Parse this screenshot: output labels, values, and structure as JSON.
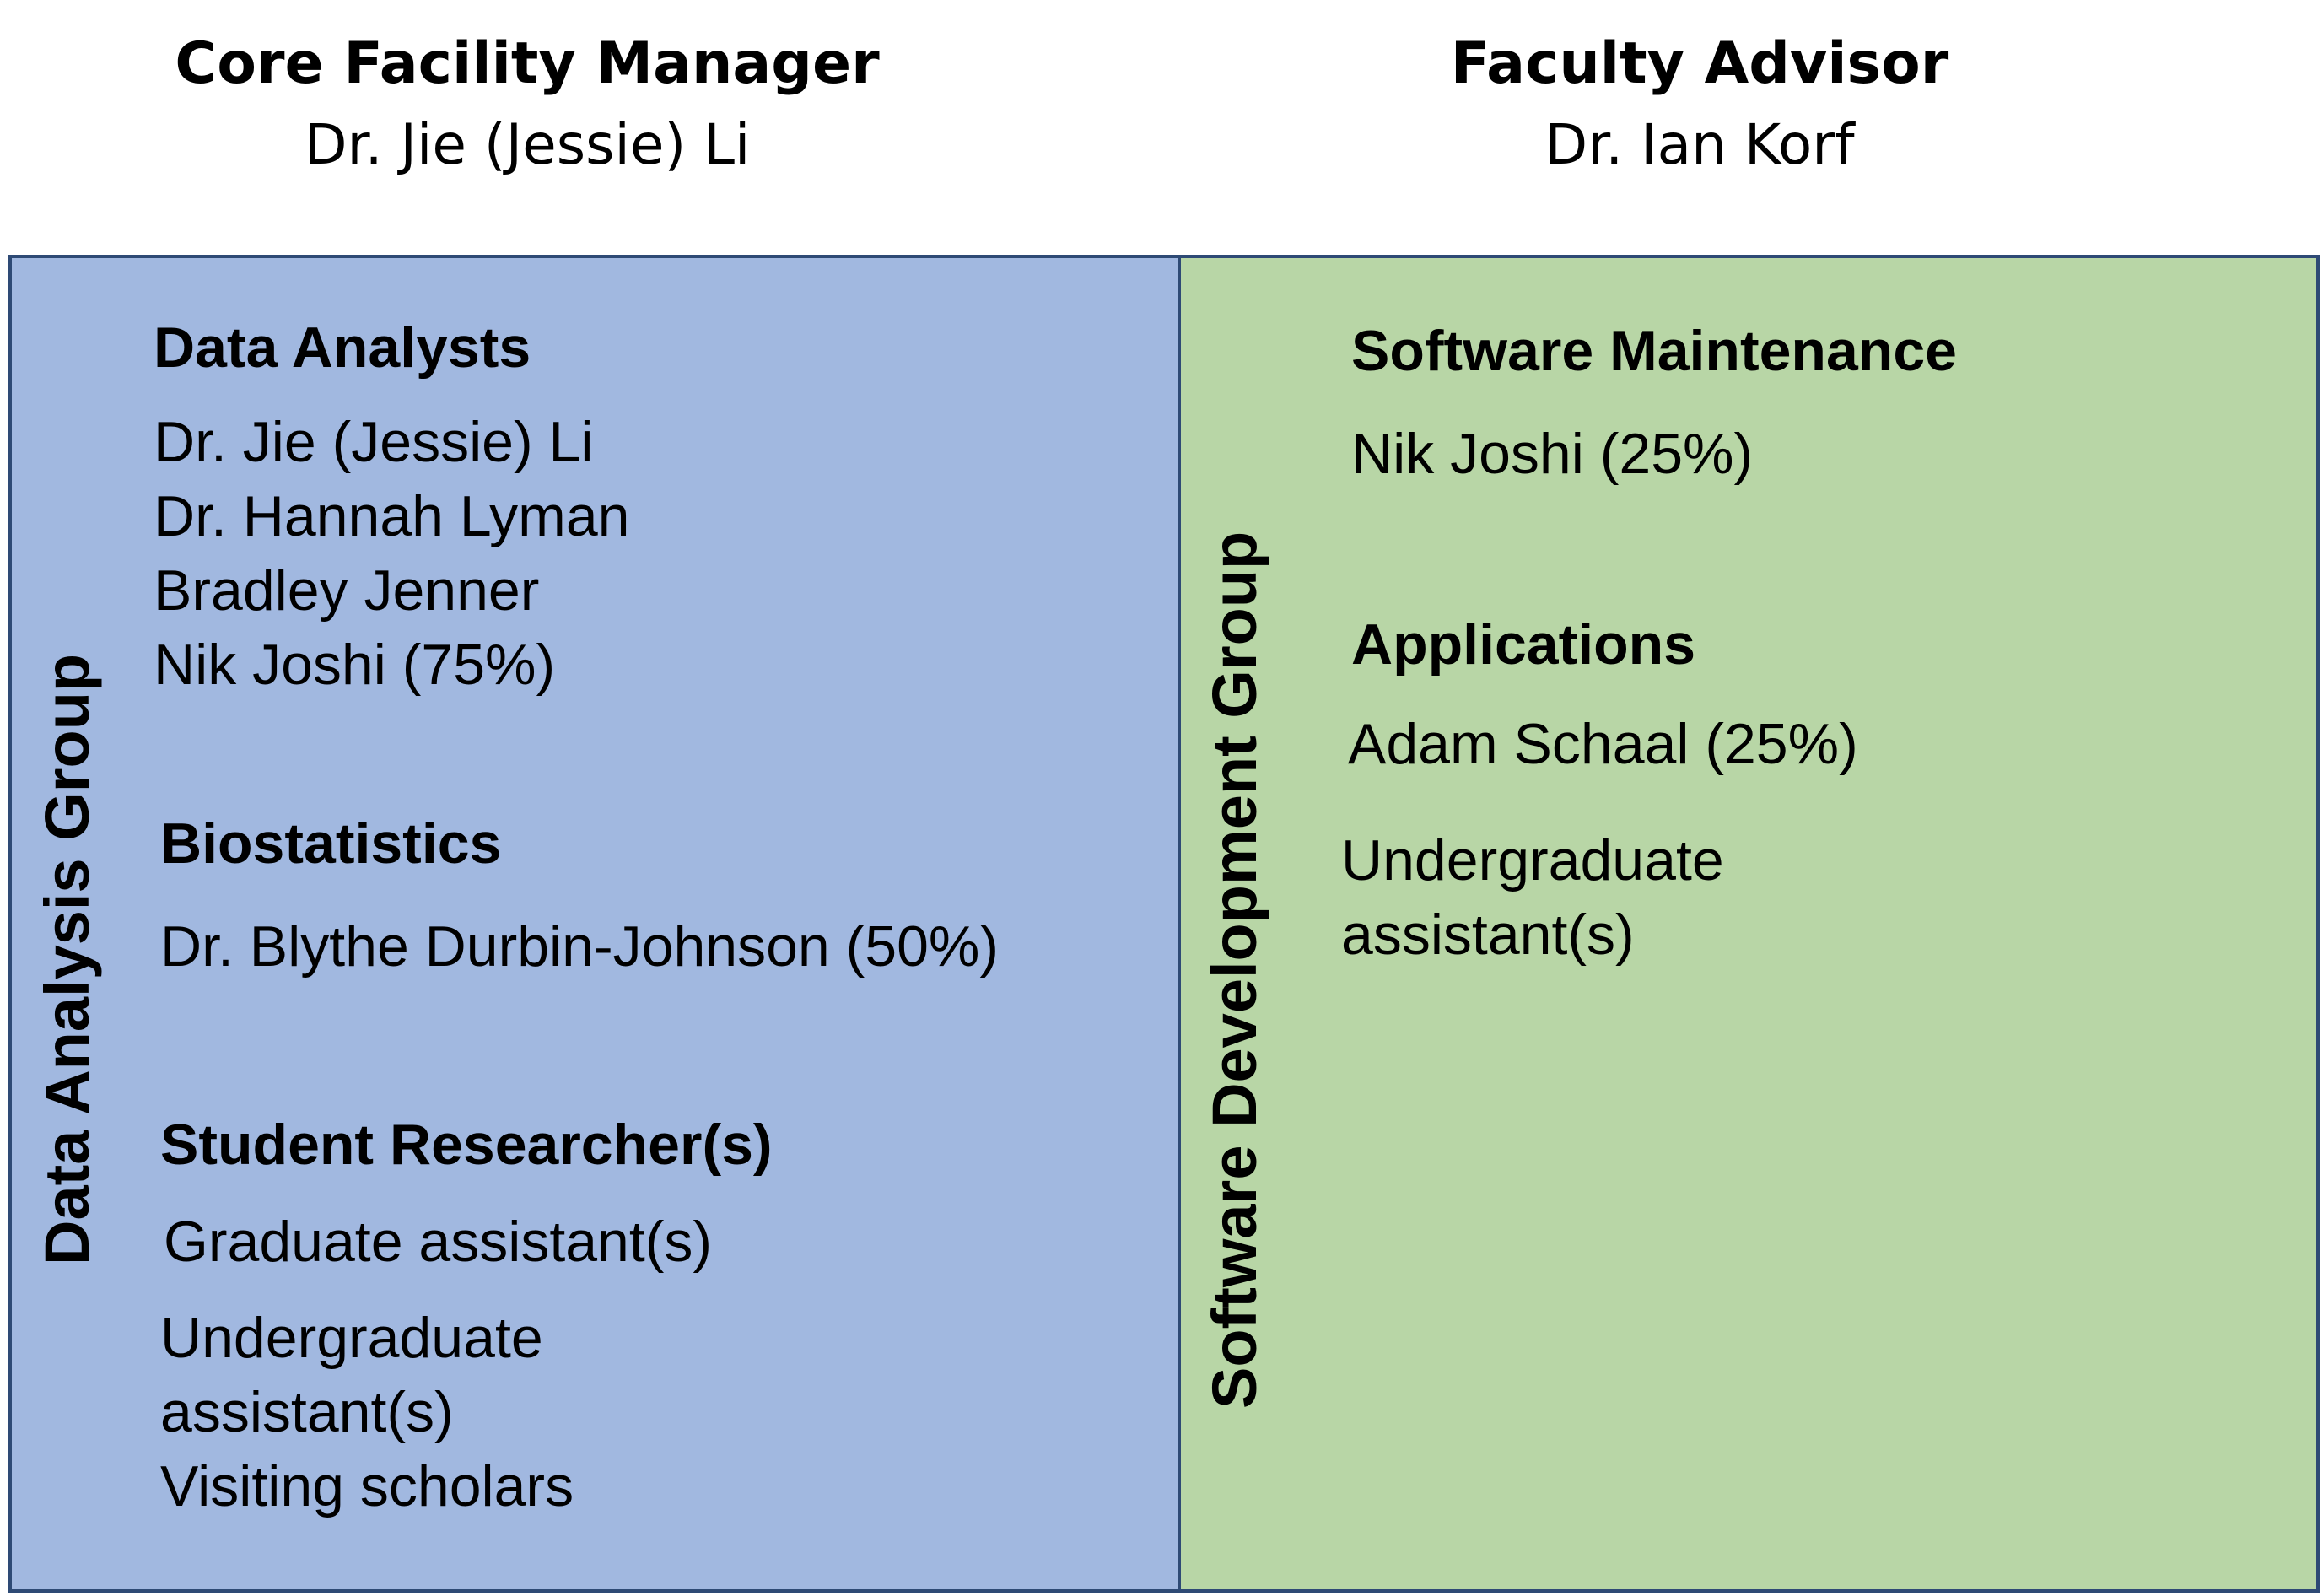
{
  "leadership": {
    "manager": {
      "title": "Core Facility Manager",
      "name": "Dr. Jie (Jessie) Li"
    },
    "advisor": {
      "title": "Faculty Advisor",
      "name": "Dr. Ian Korf"
    }
  },
  "data_analysis_group": {
    "label": "Data Analysis Group",
    "color": "#a1b8e0",
    "sections": {
      "data_analysts": {
        "title": "Data Analysts",
        "members": [
          "Dr. Jie (Jessie) Li",
          "Dr. Hannah Lyman",
          "Bradley Jenner",
          "Nik Joshi (75%)"
        ]
      },
      "biostatistics": {
        "title": "Biostatistics",
        "members": [
          "Dr. Blythe Durbin-Johnson (50%)"
        ]
      },
      "student_researchers": {
        "title": "Student Researcher(s)",
        "graduate": "Graduate assistant(s)",
        "undergraduate_line1": "Undergraduate",
        "undergraduate_line2": "assistant(s)",
        "visiting": "Visiting scholars"
      }
    }
  },
  "software_development_group": {
    "label": "Software Development Group",
    "color": "#b8d6a6",
    "sections": {
      "software_maintenance": {
        "title": "Software Maintenance",
        "members": [
          "Nik Joshi (25%)"
        ]
      },
      "applications": {
        "title": "Applications",
        "members": [
          "Adam Schaal (25%)"
        ],
        "undergraduate_line1": "Undergraduate",
        "undergraduate_line2": "assistant(s)"
      }
    }
  }
}
